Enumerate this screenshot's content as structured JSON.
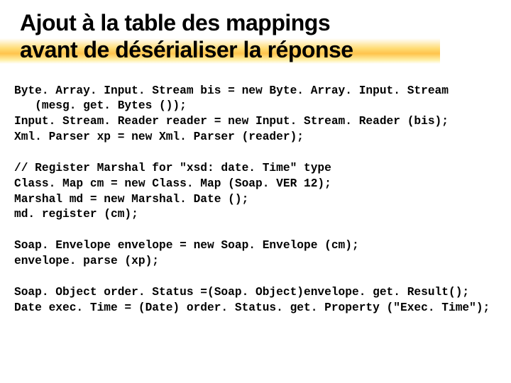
{
  "title_fontsize": 32,
  "title_color": "#000000",
  "underline_color": "#ffc400",
  "code_fontsize": 16.2,
  "code_color": "#000000",
  "background_color": "#ffffff",
  "title_line1": "Ajout à la table des mappings",
  "title_line2": "avant de désérialiser la réponse",
  "code": {
    "l01": "Byte. Array. Input. Stream bis = new Byte. Array. Input. Stream",
    "l02": "   (mesg. get. Bytes ());",
    "l03": "Input. Stream. Reader reader = new Input. Stream. Reader (bis);",
    "l04": "Xml. Parser xp = new Xml. Parser (reader);",
    "l05": "",
    "l06": "// Register Marshal for \"xsd: date. Time\" type",
    "l07": "Class. Map cm = new Class. Map (Soap. VER 12);",
    "l08": "Marshal md = new Marshal. Date ();",
    "l09": "md. register (cm);",
    "l10": "",
    "l11": "Soap. Envelope envelope = new Soap. Envelope (cm);",
    "l12": "envelope. parse (xp);",
    "l13": "",
    "l14": "Soap. Object order. Status =(Soap. Object)envelope. get. Result();",
    "l15": "Date exec. Time = (Date) order. Status. get. Property (\"Exec. Time\");"
  }
}
